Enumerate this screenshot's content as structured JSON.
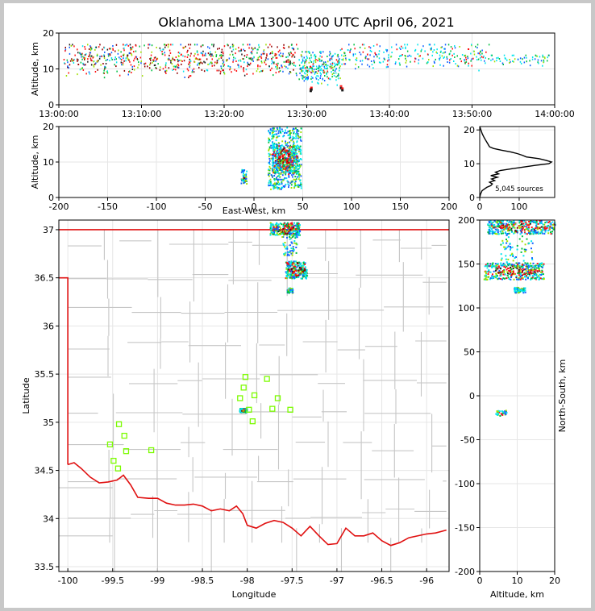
{
  "title": "Oklahoma LMA 1300-1400 UTC April 06, 2021",
  "source_count_label": "5,045 sources",
  "colors": {
    "frame": "#c8c8c8",
    "background": "#ffffff",
    "state_border": "#e01010",
    "county_lines": "#c6c6c6",
    "stations": "#7CFC00",
    "density_scale": [
      "#00e5ee",
      "#1060ff",
      "#00c040",
      "#a0e000",
      "#ff1010",
      "#900000",
      "#202020"
    ]
  },
  "chart_data": [
    {
      "id": "time-altitude",
      "type": "scatter",
      "xlabel": "",
      "ylabel": "Altitude, km",
      "x_ticks": [
        "13:00:00",
        "13:10:00",
        "13:20:00",
        "13:30:00",
        "13:40:00",
        "13:50:00",
        "14:00:00"
      ],
      "xlim": [
        "13:00:00",
        "14:00:00"
      ],
      "ylim": [
        0,
        20
      ],
      "y_ticks": [
        0,
        10,
        20
      ],
      "grid": true,
      "clusters": [
        {
          "t0": "13:00:30",
          "t1": "13:29:00",
          "alt_min": 6,
          "alt_max": 17,
          "density": "high"
        },
        {
          "t0": "13:29:00",
          "t1": "13:34:00",
          "alt_min": 3.5,
          "alt_max": 15,
          "density": "medium"
        },
        {
          "t0": "13:34:00",
          "t1": "13:52:00",
          "alt_min": 8,
          "alt_max": 17,
          "density": "medium"
        },
        {
          "t0": "13:52:00",
          "t1": "13:59:30",
          "alt_min": 9,
          "alt_max": 14,
          "density": "low"
        }
      ]
    },
    {
      "id": "eastwest-altitude",
      "type": "scatter",
      "xlabel": "East-West, km",
      "ylabel": "Altitude, km",
      "xlim": [
        -200,
        200
      ],
      "x_ticks": [
        -200,
        -150,
        -100,
        -50,
        0,
        50,
        100,
        150,
        200
      ],
      "ylim": [
        0,
        20
      ],
      "y_ticks": [
        0,
        10,
        20
      ],
      "grid": true,
      "clusters": [
        {
          "x": [
            14,
            48
          ],
          "alt": [
            2.5,
            20
          ],
          "core_x": [
            18,
            44
          ],
          "core_alt": [
            7,
            15
          ]
        },
        {
          "x": [
            -14,
            -8
          ],
          "alt": [
            4,
            8
          ],
          "core_x": [
            -12,
            -9
          ],
          "core_alt": [
            4.5,
            6
          ]
        }
      ]
    },
    {
      "id": "altitude-histogram",
      "type": "line",
      "xlabel": "",
      "ylabel": "",
      "xlim": [
        0,
        190
      ],
      "x_ticks": [
        0,
        100
      ],
      "ylim": [
        0,
        21
      ],
      "y_ticks": [
        0,
        10,
        20
      ],
      "grid": true,
      "series": [
        {
          "altitude": [
            0,
            1,
            2,
            3,
            3.5,
            4,
            4.5,
            5,
            5.5,
            6,
            6.5,
            7,
            7.5,
            8,
            8.5,
            9,
            9.5,
            10,
            10.5,
            11,
            11.5,
            12,
            12.5,
            13,
            13.5,
            14,
            14.5,
            15,
            16,
            17,
            18,
            19,
            20,
            21
          ],
          "count": [
            0,
            2,
            6,
            18,
            28,
            32,
            25,
            38,
            30,
            45,
            28,
            48,
            40,
            52,
            80,
            110,
            140,
            175,
            182,
            168,
            150,
            118,
            108,
            95,
            78,
            55,
            35,
            25,
            20,
            15,
            10,
            6,
            3,
            0
          ]
        }
      ]
    },
    {
      "id": "plan-view",
      "type": "scatter",
      "xlabel": "Longitude",
      "ylabel": "Latitude",
      "xlim": [
        -100.1,
        -95.75
      ],
      "ylim": [
        33.45,
        37.1
      ],
      "x_ticks": [
        -100.0,
        -99.5,
        -99.0,
        -98.5,
        -98.0,
        -97.5,
        -97.0,
        -96.5,
        -96.0
      ],
      "y_ticks": [
        33.5,
        34.0,
        34.5,
        35.0,
        35.5,
        36.0,
        36.5,
        37.0
      ],
      "grid": true,
      "stations": [
        [
          -98.02,
          35.47
        ],
        [
          -97.78,
          35.45
        ],
        [
          -98.04,
          35.36
        ],
        [
          -97.92,
          35.28
        ],
        [
          -98.08,
          35.25
        ],
        [
          -97.66,
          35.25
        ],
        [
          -97.98,
          35.13
        ],
        [
          -97.72,
          35.14
        ],
        [
          -97.52,
          35.13
        ],
        [
          -97.94,
          35.01
        ],
        [
          -99.43,
          34.98
        ],
        [
          -99.37,
          34.86
        ],
        [
          -99.53,
          34.77
        ],
        [
          -99.35,
          34.7
        ],
        [
          -99.07,
          34.71
        ],
        [
          -99.49,
          34.6
        ],
        [
          -99.44,
          34.52
        ]
      ],
      "clusters": [
        {
          "lon": [
            -97.75,
            -97.42
          ],
          "lat": [
            36.95,
            37.08
          ],
          "density": "high"
        },
        {
          "lon": [
            -97.62,
            -97.45
          ],
          "lat": [
            36.74,
            36.95
          ],
          "density": "low"
        },
        {
          "lon": [
            -97.58,
            -97.34
          ],
          "lat": [
            36.5,
            36.68
          ],
          "density": "high"
        },
        {
          "lon": [
            -97.56,
            -97.5
          ],
          "lat": [
            36.35,
            36.4
          ],
          "density": "low"
        },
        {
          "lon": [
            -98.09,
            -98.01
          ],
          "lat": [
            35.11,
            35.15
          ],
          "density": "high"
        }
      ]
    },
    {
      "id": "altitude-northsouth",
      "type": "scatter",
      "xlabel": "Altitude, km",
      "ylabel": "North-South, km",
      "xlim": [
        0,
        20
      ],
      "x_ticks": [
        0,
        10,
        20
      ],
      "ylim": [
        -200,
        200
      ],
      "y_ticks": [
        -200,
        -150,
        -100,
        -50,
        0,
        50,
        100,
        150,
        200
      ],
      "grid": true,
      "clusters": [
        {
          "alt": [
            2,
            20
          ],
          "ns": [
            185,
            200
          ],
          "density": "high"
        },
        {
          "alt": [
            5,
            14
          ],
          "ns": [
            152,
            185
          ],
          "density": "low"
        },
        {
          "alt": [
            1,
            17
          ],
          "ns": [
            133,
            152
          ],
          "density": "high"
        },
        {
          "alt": [
            9,
            12
          ],
          "ns": [
            118,
            124
          ],
          "density": "low"
        },
        {
          "alt": [
            4,
            7.5
          ],
          "ns": [
            -22,
            -16
          ],
          "density": "medium"
        }
      ]
    }
  ]
}
